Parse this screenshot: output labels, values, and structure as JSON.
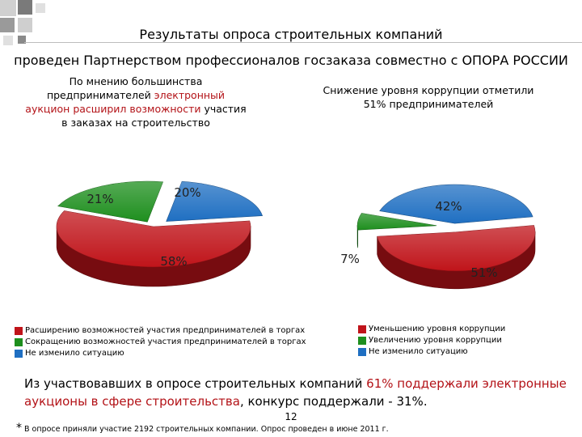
{
  "header": {
    "title_line1": "Результаты опроса строительных компаний",
    "title_line2": "проведен Партнерством профессионалов госзаказа совместно с ОПОРА РОССИИ"
  },
  "chart_data": [
    {
      "type": "pie",
      "title_parts": [
        {
          "text": "По мнению большинства",
          "highlight": false
        },
        {
          "text": "предпринимателей ",
          "highlight": false
        },
        {
          "text": "электронный",
          "highlight": true
        },
        {
          "text": "аукцион расширил возможности",
          "highlight": true
        },
        {
          "text": " участия",
          "highlight": false
        },
        {
          "text": "в  заказах на строительство",
          "highlight": false
        }
      ],
      "categories": [
        "Расширению возможностей участия предпринимателей в торгах",
        "Сокращению возможностей участия предпринимателей в торгах",
        "Не изменило ситуацию"
      ],
      "values": [
        58,
        21,
        20
      ],
      "labels": [
        "58%",
        "21%",
        "20%"
      ],
      "colors": [
        "#c0141a",
        "#1e8f1e",
        "#1f6fc2"
      ],
      "legend_position": "bottom-left"
    },
    {
      "type": "pie",
      "title_line1": "Снижение уровня коррупции отметили",
      "title_line2": "51% предпринимателей",
      "categories": [
        "Уменьшению уровня коррупции",
        "Увеличению уровня коррупции",
        "Не изменило ситуацию"
      ],
      "values": [
        51,
        7,
        42
      ],
      "labels": [
        "51%",
        "7%",
        "42%"
      ],
      "colors": [
        "#c0141a",
        "#1e8f1e",
        "#1f6fc2"
      ],
      "legend_position": "bottom-right"
    }
  ],
  "summary": {
    "part1": "Из участвовавших в опросе строительных компаний ",
    "highlight1": "61% поддержали электронные аукционы в сфере строительства",
    "part2": ", конкурс поддержали - 31%."
  },
  "page_number": "12",
  "footnote": {
    "star": "*",
    "text": " В опросе приняли участие 2192 строительных компании. Опрос проведен в июне 2011 г."
  },
  "colors": {
    "decor_gray": "#c8c8c8",
    "decor_dark": "#6b6b6b",
    "highlight": "#b31217"
  }
}
